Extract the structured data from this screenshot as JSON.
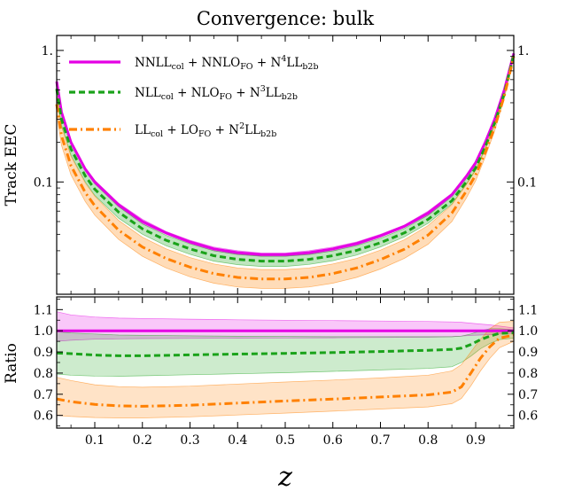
{
  "chart_data": [
    {
      "type": "line",
      "panel": "upper",
      "title": "Convergence: bulk",
      "ylabel": "Track EEC",
      "xlabel": "z",
      "xlim": [
        0.02,
        0.98
      ],
      "ylim": [
        0.014,
        1.3
      ],
      "yscale": "log",
      "ytick_labels": [
        "1.",
        "0.1"
      ],
      "xticks": [
        0.1,
        0.2,
        0.3,
        0.4,
        0.5,
        0.6,
        0.7,
        0.8,
        0.9
      ],
      "x": [
        0.02,
        0.03,
        0.05,
        0.08,
        0.1,
        0.15,
        0.2,
        0.25,
        0.3,
        0.35,
        0.4,
        0.45,
        0.5,
        0.55,
        0.6,
        0.65,
        0.7,
        0.75,
        0.8,
        0.85,
        0.88,
        0.9,
        0.92,
        0.94,
        0.96,
        0.98
      ],
      "series": [
        {
          "name_parts": {
            "a": "NNLL",
            "a_sub": "col",
            "b": "NNLO",
            "b_sub": "FO",
            "c_pre": "N",
            "c_sup": "4",
            "c": "LL",
            "c_sub": "b2b"
          },
          "color": "#e400e4",
          "style": "solid",
          "values": [
            0.58,
            0.34,
            0.2,
            0.125,
            0.1,
            0.067,
            0.05,
            0.041,
            0.035,
            0.031,
            0.029,
            0.028,
            0.028,
            0.029,
            0.031,
            0.034,
            0.039,
            0.046,
            0.058,
            0.08,
            0.11,
            0.14,
            0.2,
            0.3,
            0.5,
            0.95
          ],
          "band_low": [
            0.55,
            0.325,
            0.193,
            0.121,
            0.097,
            0.065,
            0.048,
            0.04,
            0.034,
            0.03,
            0.028,
            0.0272,
            0.0272,
            0.028,
            0.03,
            0.033,
            0.038,
            0.045,
            0.056,
            0.078,
            0.107,
            0.136,
            0.195,
            0.29,
            0.49,
            0.93
          ],
          "band_high": [
            0.61,
            0.355,
            0.207,
            0.129,
            0.103,
            0.069,
            0.052,
            0.042,
            0.036,
            0.032,
            0.03,
            0.0288,
            0.0288,
            0.03,
            0.032,
            0.035,
            0.04,
            0.047,
            0.06,
            0.082,
            0.113,
            0.144,
            0.205,
            0.31,
            0.51,
            0.97
          ]
        },
        {
          "name_parts": {
            "a": "NLL",
            "a_sub": "col",
            "b": "NLO",
            "b_sub": "FO",
            "c_pre": "N",
            "c_sup": "3",
            "c": "LL",
            "c_sub": "b2b"
          },
          "color": "#1aa21a",
          "style": "dashed",
          "values": [
            0.51,
            0.3,
            0.178,
            0.111,
            0.088,
            0.059,
            0.044,
            0.036,
            0.031,
            0.0275,
            0.0258,
            0.025,
            0.025,
            0.0258,
            0.0275,
            0.0302,
            0.0345,
            0.041,
            0.052,
            0.072,
            0.1,
            0.128,
            0.185,
            0.28,
            0.47,
            0.93
          ],
          "band_low": [
            0.46,
            0.27,
            0.16,
            0.1,
            0.079,
            0.053,
            0.04,
            0.0327,
            0.0282,
            0.025,
            0.0235,
            0.0228,
            0.0228,
            0.0236,
            0.0252,
            0.0278,
            0.032,
            0.0382,
            0.0485,
            0.068,
            0.095,
            0.123,
            0.178,
            0.27,
            0.455,
            0.91
          ],
          "band_high": [
            0.57,
            0.335,
            0.198,
            0.123,
            0.097,
            0.065,
            0.048,
            0.0392,
            0.0338,
            0.03,
            0.0282,
            0.0273,
            0.0273,
            0.0282,
            0.0299,
            0.0328,
            0.0373,
            0.0442,
            0.0558,
            0.077,
            0.106,
            0.135,
            0.194,
            0.292,
            0.49,
            0.96
          ]
        },
        {
          "name_parts": {
            "a": "LL",
            "a_sub": "col",
            "b": "LO",
            "b_sub": "FO",
            "c_pre": "N",
            "c_sup": "2",
            "c": "LL",
            "c_sub": "b2b"
          },
          "color": "#ff8000",
          "style": "dashdot",
          "values": [
            0.39,
            0.225,
            0.133,
            0.083,
            0.066,
            0.043,
            0.032,
            0.0262,
            0.0225,
            0.0201,
            0.0188,
            0.0183,
            0.0183,
            0.0188,
            0.0201,
            0.0222,
            0.0257,
            0.0308,
            0.0395,
            0.058,
            0.085,
            0.113,
            0.168,
            0.26,
            0.45,
            0.9
          ],
          "band_low": [
            0.33,
            0.19,
            0.113,
            0.071,
            0.056,
            0.0366,
            0.0272,
            0.0222,
            0.019,
            0.017,
            0.0159,
            0.0155,
            0.0155,
            0.0159,
            0.017,
            0.0188,
            0.0218,
            0.0262,
            0.0336,
            0.05,
            0.075,
            0.102,
            0.155,
            0.245,
            0.43,
            0.88
          ],
          "band_high": [
            0.46,
            0.265,
            0.157,
            0.098,
            0.078,
            0.051,
            0.038,
            0.031,
            0.0266,
            0.0238,
            0.0222,
            0.0216,
            0.0216,
            0.0222,
            0.0238,
            0.0262,
            0.0303,
            0.0363,
            0.0466,
            0.067,
            0.096,
            0.125,
            0.182,
            0.278,
            0.475,
            0.93
          ]
        }
      ]
    },
    {
      "type": "line",
      "panel": "lower",
      "ylabel": "Ratio",
      "xlabel": "z",
      "xlim": [
        0.02,
        0.98
      ],
      "ylim": [
        0.54,
        1.16
      ],
      "yticks": [
        0.6,
        0.7,
        0.8,
        0.9,
        1.0,
        1.1
      ],
      "ytick_labels": [
        "0.6",
        "0.7",
        "0.8",
        "0.9",
        "1.0",
        "1.1"
      ],
      "xticks": [
        0.1,
        0.2,
        0.3,
        0.4,
        0.5,
        0.6,
        0.7,
        0.8,
        0.9
      ],
      "xtick_labels": [
        "0.1",
        "0.2",
        "0.3",
        "0.4",
        "0.5",
        "0.6",
        "0.7",
        "0.8",
        "0.9"
      ],
      "x": [
        0.02,
        0.05,
        0.1,
        0.15,
        0.2,
        0.3,
        0.4,
        0.5,
        0.6,
        0.7,
        0.8,
        0.85,
        0.87,
        0.89,
        0.91,
        0.93,
        0.95,
        0.98
      ],
      "series": [
        {
          "color": "#e400e4",
          "style": "solid",
          "values": [
            1.0,
            1.0,
            1.0,
            1.0,
            1.0,
            1.0,
            1.0,
            1.0,
            1.0,
            1.0,
            1.0,
            1.0,
            1.0,
            1.0,
            1.0,
            1.0,
            1.0,
            1.0
          ],
          "band_low": [
            0.95,
            0.955,
            0.96,
            0.962,
            0.963,
            0.964,
            0.965,
            0.966,
            0.967,
            0.968,
            0.97,
            0.972,
            0.975,
            0.978,
            0.98,
            0.982,
            0.985,
            0.988
          ],
          "band_high": [
            1.09,
            1.075,
            1.065,
            1.06,
            1.058,
            1.055,
            1.052,
            1.05,
            1.048,
            1.046,
            1.044,
            1.042,
            1.04,
            1.036,
            1.032,
            1.028,
            1.022,
            1.014
          ]
        },
        {
          "color": "#1aa21a",
          "style": "dashed",
          "values": [
            0.895,
            0.892,
            0.885,
            0.882,
            0.882,
            0.886,
            0.89,
            0.893,
            0.897,
            0.902,
            0.908,
            0.912,
            0.918,
            0.935,
            0.958,
            0.975,
            0.988,
            0.99
          ],
          "band_low": [
            0.795,
            0.79,
            0.786,
            0.785,
            0.787,
            0.792,
            0.797,
            0.802,
            0.808,
            0.815,
            0.822,
            0.83,
            0.85,
            0.88,
            0.915,
            0.94,
            0.958,
            0.965
          ],
          "band_high": [
            0.995,
            0.99,
            0.985,
            0.98,
            0.978,
            0.976,
            0.974,
            0.973,
            0.972,
            0.972,
            0.972,
            0.972,
            0.975,
            0.985,
            1.0,
            1.01,
            1.01,
            1.005
          ]
        },
        {
          "color": "#ff8000",
          "style": "dashdot",
          "values": [
            0.678,
            0.665,
            0.652,
            0.645,
            0.643,
            0.648,
            0.658,
            0.668,
            0.677,
            0.687,
            0.697,
            0.71,
            0.735,
            0.8,
            0.87,
            0.925,
            0.965,
            0.98
          ],
          "band_low": [
            0.6,
            0.595,
            0.59,
            0.588,
            0.588,
            0.593,
            0.602,
            0.611,
            0.62,
            0.63,
            0.64,
            0.655,
            0.68,
            0.74,
            0.81,
            0.87,
            0.92,
            0.95
          ],
          "band_high": [
            0.78,
            0.765,
            0.745,
            0.736,
            0.733,
            0.738,
            0.748,
            0.758,
            0.767,
            0.777,
            0.79,
            0.81,
            0.84,
            0.9,
            0.96,
            1.01,
            1.04,
            1.045
          ]
        }
      ]
    }
  ]
}
